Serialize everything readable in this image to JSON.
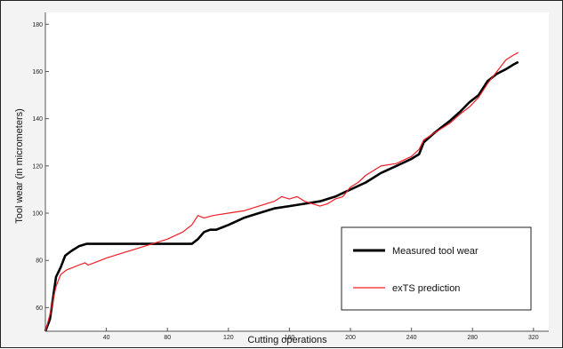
{
  "chart_data": {
    "type": "line",
    "title": "",
    "xlabel": "Cutting operations",
    "ylabel": "Tool wear (in micrometers)",
    "xlim": [
      0,
      330
    ],
    "ylim": [
      50,
      185
    ],
    "xticks": [
      40,
      80,
      120,
      160,
      200,
      240,
      280,
      320
    ],
    "yticks": [
      60,
      80,
      100,
      120,
      140,
      160,
      180
    ],
    "grid": false,
    "legend_position": "bottom-right",
    "series": [
      {
        "name": "Measured tool wear",
        "color": "#000000",
        "points": [
          [
            0,
            50
          ],
          [
            3,
            55
          ],
          [
            5,
            64
          ],
          [
            7,
            73
          ],
          [
            10,
            77
          ],
          [
            13,
            82
          ],
          [
            17,
            84
          ],
          [
            22,
            86
          ],
          [
            27,
            87
          ],
          [
            40,
            87
          ],
          [
            60,
            87
          ],
          [
            80,
            87
          ],
          [
            90,
            87
          ],
          [
            96,
            87
          ],
          [
            100,
            89
          ],
          [
            104,
            92
          ],
          [
            108,
            93
          ],
          [
            112,
            93
          ],
          [
            116,
            94
          ],
          [
            120,
            95
          ],
          [
            130,
            98
          ],
          [
            140,
            100
          ],
          [
            150,
            102
          ],
          [
            160,
            103
          ],
          [
            170,
            104
          ],
          [
            180,
            105
          ],
          [
            190,
            107
          ],
          [
            200,
            110
          ],
          [
            210,
            113
          ],
          [
            220,
            117
          ],
          [
            230,
            120
          ],
          [
            240,
            123
          ],
          [
            245,
            125
          ],
          [
            248,
            130
          ],
          [
            255,
            134
          ],
          [
            265,
            139
          ],
          [
            272,
            143
          ],
          [
            278,
            147
          ],
          [
            284,
            150
          ],
          [
            290,
            156
          ],
          [
            296,
            159
          ],
          [
            302,
            161
          ],
          [
            307,
            163
          ],
          [
            310,
            164
          ]
        ]
      },
      {
        "name": "exTS prediction",
        "color": "#ee1c24",
        "points": [
          [
            0,
            50
          ],
          [
            3,
            57
          ],
          [
            5,
            63
          ],
          [
            7,
            69
          ],
          [
            10,
            74
          ],
          [
            14,
            76
          ],
          [
            18,
            77
          ],
          [
            22,
            78
          ],
          [
            26,
            79
          ],
          [
            28,
            78
          ],
          [
            32,
            79
          ],
          [
            40,
            81
          ],
          [
            50,
            83
          ],
          [
            60,
            85
          ],
          [
            70,
            87
          ],
          [
            80,
            89
          ],
          [
            90,
            92
          ],
          [
            96,
            95
          ],
          [
            100,
            99
          ],
          [
            104,
            98
          ],
          [
            110,
            99
          ],
          [
            120,
            100
          ],
          [
            130,
            101
          ],
          [
            140,
            103
          ],
          [
            150,
            105
          ],
          [
            155,
            107
          ],
          [
            160,
            106
          ],
          [
            165,
            107
          ],
          [
            170,
            105
          ],
          [
            175,
            104
          ],
          [
            180,
            103
          ],
          [
            185,
            104
          ],
          [
            190,
            106
          ],
          [
            195,
            107
          ],
          [
            200,
            111
          ],
          [
            205,
            113
          ],
          [
            210,
            116
          ],
          [
            220,
            120
          ],
          [
            230,
            121
          ],
          [
            240,
            124
          ],
          [
            245,
            127
          ],
          [
            248,
            131
          ],
          [
            255,
            134
          ],
          [
            265,
            138
          ],
          [
            272,
            142
          ],
          [
            278,
            145
          ],
          [
            284,
            149
          ],
          [
            290,
            155
          ],
          [
            296,
            160
          ],
          [
            302,
            165
          ],
          [
            307,
            167
          ],
          [
            310,
            168
          ]
        ]
      }
    ]
  }
}
